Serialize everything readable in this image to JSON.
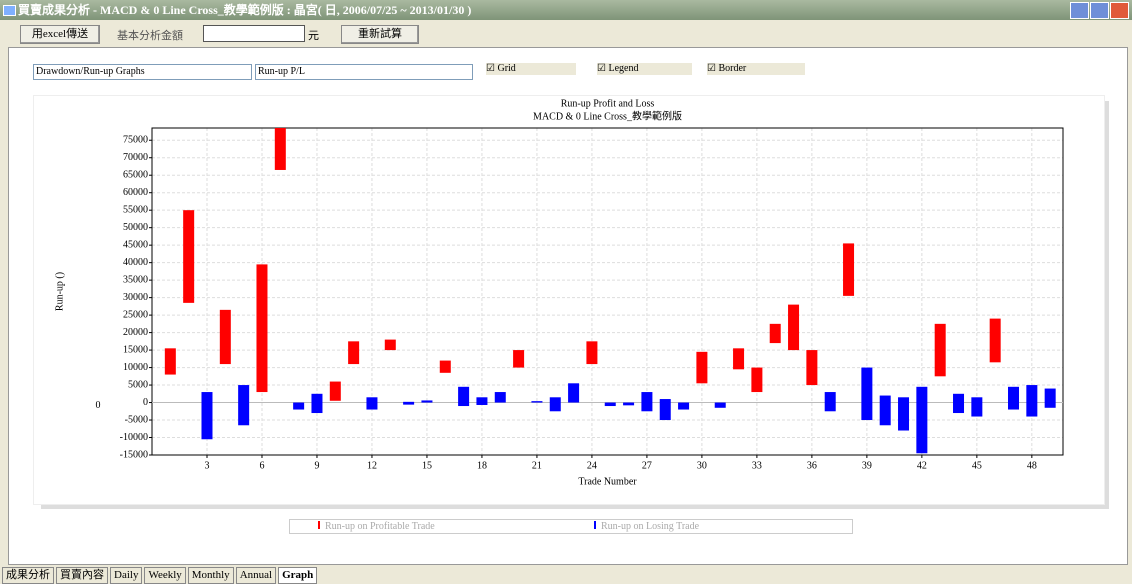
{
  "window": {
    "title": "買賣成果分析 - MACD & 0 Line Cross_教學範例版 : 晶宮( 日, 2006/07/25 ~ 2013/01/30 )"
  },
  "toolbar": {
    "export": "用excel傳送",
    "amount_label": "基本分析金額",
    "unit": "元",
    "recalc": "重新試算"
  },
  "controls": {
    "graph_type": "Drawdown/Run-up Graphs",
    "graph_item": "Run-up P/L",
    "checkboxes": [
      "Grid",
      "Legend",
      "Border"
    ]
  },
  "tabs": [
    "成果分析",
    "買賣內容",
    "Daily",
    "Weekly",
    "Monthly",
    "Annual",
    "Graph"
  ],
  "chart_data": {
    "type": "floating-bar",
    "title": "Run-up Profit and Loss",
    "subtitle": "MACD & 0 Line Cross_教學範例版",
    "x_label": "Trade Number",
    "y_label": "Run-up ()",
    "annotation": "0",
    "x": [
      1,
      2,
      3,
      4,
      5,
      6,
      7,
      8,
      9,
      10,
      11,
      12,
      13,
      14,
      15,
      16,
      17,
      18,
      19,
      20,
      21,
      22,
      23,
      24,
      25,
      26,
      27,
      28,
      29,
      30,
      31,
      32,
      33,
      34,
      35,
      36,
      37,
      38,
      39,
      40,
      41,
      42,
      43,
      44,
      45,
      46,
      47,
      48,
      49
    ],
    "xlim": [
      0,
      49.7
    ],
    "xticks": [
      3,
      6,
      9,
      12,
      15,
      18,
      21,
      24,
      27,
      30,
      33,
      36,
      39,
      42,
      45,
      48
    ],
    "ylim": [
      -15000,
      78500
    ],
    "yticks": [
      -15000,
      -10000,
      -5000,
      0,
      5000,
      10000,
      15000,
      20000,
      25000,
      30000,
      35000,
      40000,
      45000,
      50000,
      55000,
      60000,
      65000,
      70000,
      75000
    ],
    "grid": true,
    "series": [
      {
        "name": "Run-up on Profitable Trade",
        "color": "#ff0000",
        "low": [
          8000,
          28500,
          null,
          11000,
          null,
          3000,
          66500,
          null,
          null,
          500,
          11000,
          null,
          15000,
          null,
          null,
          8500,
          null,
          null,
          null,
          10000,
          null,
          null,
          null,
          11000,
          null,
          null,
          null,
          null,
          null,
          5500,
          null,
          9500,
          3000,
          17000,
          15000,
          5000,
          null,
          30500,
          null,
          null,
          null,
          null,
          7500,
          null,
          null,
          11500,
          null,
          null,
          null
        ],
        "high": [
          15500,
          55000,
          null,
          26500,
          null,
          39500,
          78500,
          null,
          null,
          6000,
          17500,
          null,
          18000,
          null,
          null,
          12000,
          null,
          null,
          null,
          15000,
          null,
          null,
          null,
          17500,
          null,
          null,
          null,
          null,
          null,
          14500,
          null,
          15500,
          10000,
          22500,
          28000,
          15000,
          null,
          45500,
          null,
          null,
          null,
          null,
          22500,
          null,
          null,
          24000,
          null,
          null,
          null
        ]
      },
      {
        "name": "Run-up on Losing Trade",
        "color": "#0000ff",
        "low": [
          null,
          null,
          -10500,
          null,
          -6500,
          null,
          null,
          -2000,
          -3000,
          null,
          null,
          -2000,
          null,
          -600,
          0,
          null,
          -1000,
          -700,
          0,
          null,
          0,
          -2500,
          0,
          null,
          -1000,
          -800,
          -2500,
          -5000,
          -2000,
          null,
          -1500,
          null,
          null,
          null,
          null,
          null,
          -2500,
          null,
          -5000,
          -6500,
          -8000,
          -14500,
          null,
          -3000,
          -4000,
          null,
          -2000,
          -4000,
          -1500
        ],
        "high": [
          null,
          null,
          3000,
          null,
          5000,
          null,
          null,
          0,
          2500,
          null,
          null,
          1500,
          null,
          200,
          600,
          null,
          4500,
          1500,
          3000,
          null,
          400,
          1500,
          5500,
          null,
          0,
          0,
          3000,
          1000,
          0,
          null,
          0,
          null,
          null,
          null,
          null,
          null,
          3000,
          null,
          10000,
          2000,
          1500,
          4500,
          null,
          2500,
          1500,
          null,
          4500,
          5000,
          4000
        ]
      }
    ]
  }
}
